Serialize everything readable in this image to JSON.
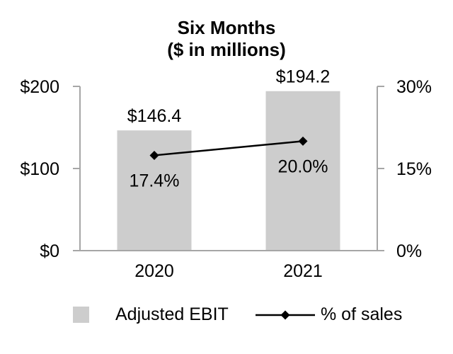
{
  "chart_data": {
    "type": "bar",
    "title": "Six Months",
    "subtitle": "($ in millions)",
    "categories": [
      "2020",
      "2021"
    ],
    "series": [
      {
        "name": "Adjusted EBIT",
        "kind": "bar",
        "axis": "left",
        "values": [
          146.4,
          194.2
        ],
        "labels": [
          "$146.4",
          "$194.2"
        ],
        "color": "#cdcdcd"
      },
      {
        "name": "% of sales",
        "kind": "line",
        "axis": "right",
        "marker": "diamond",
        "values": [
          17.4,
          20.0
        ],
        "labels": [
          "17.4%",
          "20.0%"
        ],
        "color": "#000000"
      }
    ],
    "left_axis": {
      "min": 0,
      "max": 200,
      "ticks": [
        "$0",
        "$100",
        "$200"
      ]
    },
    "right_axis": {
      "min": 0,
      "max": 30,
      "ticks": [
        "0%",
        "15%",
        "30%"
      ]
    },
    "legend": {
      "position": "bottom",
      "items": [
        "Adjusted EBIT",
        "% of sales"
      ]
    },
    "grid": false,
    "axis_color": "#a6a6a6",
    "text_color": "#000000",
    "background": "#ffffff"
  }
}
